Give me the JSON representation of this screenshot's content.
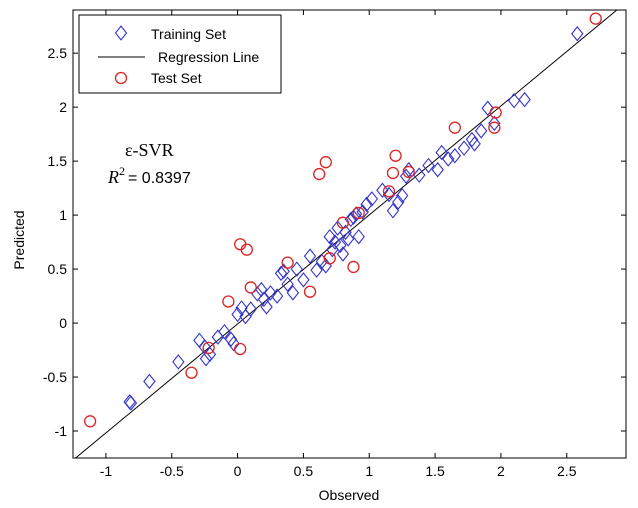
{
  "chart_data": {
    "type": "scatter",
    "title": "",
    "xlabel": "Observed",
    "ylabel": "Predicted",
    "xlim": [
      -1.25,
      2.95
    ],
    "ylim": [
      -1.25,
      2.9
    ],
    "xticks": [
      -1,
      -0.5,
      0,
      0.5,
      1,
      1.5,
      2,
      2.5
    ],
    "yticks": [
      -1,
      -0.5,
      0,
      0.5,
      1,
      1.5,
      2,
      2.5
    ],
    "xtick_labels": [
      "-1",
      "-0.5",
      "0",
      "0.5",
      "1",
      "1.5",
      "2",
      "2.5"
    ],
    "ytick_labels": [
      "-1",
      "-0.5",
      "0",
      "0.5",
      "1",
      "1.5",
      "2",
      "2.5"
    ],
    "grid": false,
    "legend_position": "top-left",
    "annotation": {
      "method": "ε-SVR",
      "r2_label": "R",
      "r2_sup": "2",
      "r2_value": "= 0.8397"
    },
    "colors": {
      "training": "#3333cc",
      "test": "#dd2222",
      "line": "#000000"
    },
    "series": [
      {
        "name": "Training Set",
        "marker": "diamond",
        "points": [
          [
            -0.82,
            -0.73
          ],
          [
            -0.81,
            -0.74
          ],
          [
            -0.67,
            -0.54
          ],
          [
            -0.45,
            -0.36
          ],
          [
            -0.29,
            -0.16
          ],
          [
            -0.25,
            -0.22
          ],
          [
            -0.24,
            -0.33
          ],
          [
            -0.21,
            -0.29
          ],
          [
            -0.15,
            -0.13
          ],
          [
            -0.1,
            -0.08
          ],
          [
            -0.05,
            -0.15
          ],
          [
            -0.03,
            -0.19
          ],
          [
            0.0,
            0.08
          ],
          [
            0.03,
            0.14
          ],
          [
            0.06,
            0.06
          ],
          [
            0.1,
            0.13
          ],
          [
            0.15,
            0.27
          ],
          [
            0.18,
            0.31
          ],
          [
            0.2,
            0.22
          ],
          [
            0.22,
            0.15
          ],
          [
            0.25,
            0.28
          ],
          [
            0.3,
            0.25
          ],
          [
            0.33,
            0.46
          ],
          [
            0.35,
            0.48
          ],
          [
            0.38,
            0.36
          ],
          [
            0.42,
            0.28
          ],
          [
            0.45,
            0.5
          ],
          [
            0.5,
            0.4
          ],
          [
            0.55,
            0.62
          ],
          [
            0.6,
            0.49
          ],
          [
            0.64,
            0.57
          ],
          [
            0.67,
            0.53
          ],
          [
            0.7,
            0.8
          ],
          [
            0.72,
            0.68
          ],
          [
            0.74,
            0.75
          ],
          [
            0.76,
            0.88
          ],
          [
            0.78,
            0.72
          ],
          [
            0.8,
            0.64
          ],
          [
            0.82,
            0.84
          ],
          [
            0.84,
            0.78
          ],
          [
            0.86,
            0.96
          ],
          [
            0.88,
            0.98
          ],
          [
            0.9,
            1.01
          ],
          [
            0.92,
            0.8
          ],
          [
            0.95,
            1.03
          ],
          [
            0.98,
            1.1
          ],
          [
            1.02,
            1.15
          ],
          [
            1.1,
            1.23
          ],
          [
            1.15,
            1.19
          ],
          [
            1.18,
            1.04
          ],
          [
            1.22,
            1.12
          ],
          [
            1.25,
            1.18
          ],
          [
            1.28,
            1.36
          ],
          [
            1.3,
            1.42
          ],
          [
            1.38,
            1.37
          ],
          [
            1.45,
            1.46
          ],
          [
            1.52,
            1.42
          ],
          [
            1.55,
            1.58
          ],
          [
            1.6,
            1.52
          ],
          [
            1.65,
            1.55
          ],
          [
            1.72,
            1.62
          ],
          [
            1.78,
            1.7
          ],
          [
            1.8,
            1.66
          ],
          [
            1.85,
            1.78
          ],
          [
            1.9,
            1.99
          ],
          [
            1.95,
            1.85
          ],
          [
            2.1,
            2.06
          ],
          [
            2.18,
            2.07
          ],
          [
            2.58,
            2.68
          ]
        ]
      },
      {
        "name": "Regression Line",
        "marker": "line",
        "endpoints": [
          [
            -1.25,
            -1.27
          ],
          [
            2.95,
            2.97
          ]
        ]
      },
      {
        "name": "Test Set",
        "marker": "circle",
        "points": [
          [
            -1.12,
            -0.91
          ],
          [
            -0.35,
            -0.46
          ],
          [
            -0.22,
            -0.23
          ],
          [
            -0.07,
            0.2
          ],
          [
            0.02,
            0.73
          ],
          [
            0.02,
            -0.24
          ],
          [
            0.07,
            0.68
          ],
          [
            0.1,
            0.33
          ],
          [
            0.38,
            0.56
          ],
          [
            0.55,
            0.29
          ],
          [
            0.62,
            1.38
          ],
          [
            0.67,
            1.49
          ],
          [
            0.7,
            0.6
          ],
          [
            0.8,
            0.93
          ],
          [
            0.88,
            0.52
          ],
          [
            0.92,
            1.02
          ],
          [
            1.15,
            1.22
          ],
          [
            1.18,
            1.39
          ],
          [
            1.2,
            1.55
          ],
          [
            1.3,
            1.4
          ],
          [
            1.65,
            1.81
          ],
          [
            1.95,
            1.81
          ],
          [
            1.96,
            1.95
          ],
          [
            2.72,
            2.82
          ]
        ]
      }
    ]
  }
}
